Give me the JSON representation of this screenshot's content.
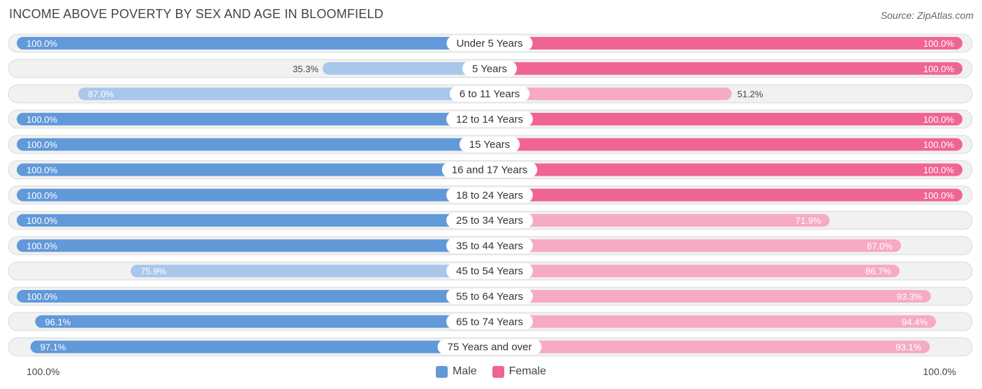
{
  "header": {
    "title": "INCOME ABOVE POVERTY BY SEX AND AGE IN BLOOMFIELD",
    "source": "Source: ZipAtlas.com"
  },
  "colors": {
    "male_strong": "#6199d9",
    "male_light": "#a9c7eb",
    "female_strong": "#f06492",
    "female_light": "#f6aac4",
    "row_bg": "#f1f1f1"
  },
  "axis": {
    "left_label": "100.0%",
    "right_label": "100.0%"
  },
  "legend": {
    "male_label": "Male",
    "female_label": "Female"
  },
  "chart_data": {
    "type": "bar",
    "orientation": "horizontal-diverging",
    "title": "INCOME ABOVE POVERTY BY SEX AND AGE IN BLOOMFIELD",
    "xlim": [
      0,
      100
    ],
    "categories": [
      "Under 5 Years",
      "5 Years",
      "6 to 11 Years",
      "12 to 14 Years",
      "15 Years",
      "16 and 17 Years",
      "18 to 24 Years",
      "25 to 34 Years",
      "35 to 44 Years",
      "45 to 54 Years",
      "55 to 64 Years",
      "65 to 74 Years",
      "75 Years and over"
    ],
    "series": [
      {
        "name": "Male",
        "values": [
          100.0,
          35.3,
          87.0,
          100.0,
          100.0,
          100.0,
          100.0,
          100.0,
          100.0,
          75.9,
          100.0,
          96.1,
          97.1
        ],
        "labels": [
          "100.0%",
          "35.3%",
          "87.0%",
          "100.0%",
          "100.0%",
          "100.0%",
          "100.0%",
          "100.0%",
          "100.0%",
          "75.9%",
          "100.0%",
          "96.1%",
          "97.1%"
        ]
      },
      {
        "name": "Female",
        "values": [
          100.0,
          100.0,
          51.2,
          100.0,
          100.0,
          100.0,
          100.0,
          71.9,
          87.0,
          86.7,
          93.3,
          94.4,
          93.1
        ],
        "labels": [
          "100.0%",
          "100.0%",
          "51.2%",
          "100.0%",
          "100.0%",
          "100.0%",
          "100.0%",
          "71.9%",
          "87.0%",
          "86.7%",
          "93.3%",
          "94.4%",
          "93.1%"
        ]
      }
    ]
  }
}
